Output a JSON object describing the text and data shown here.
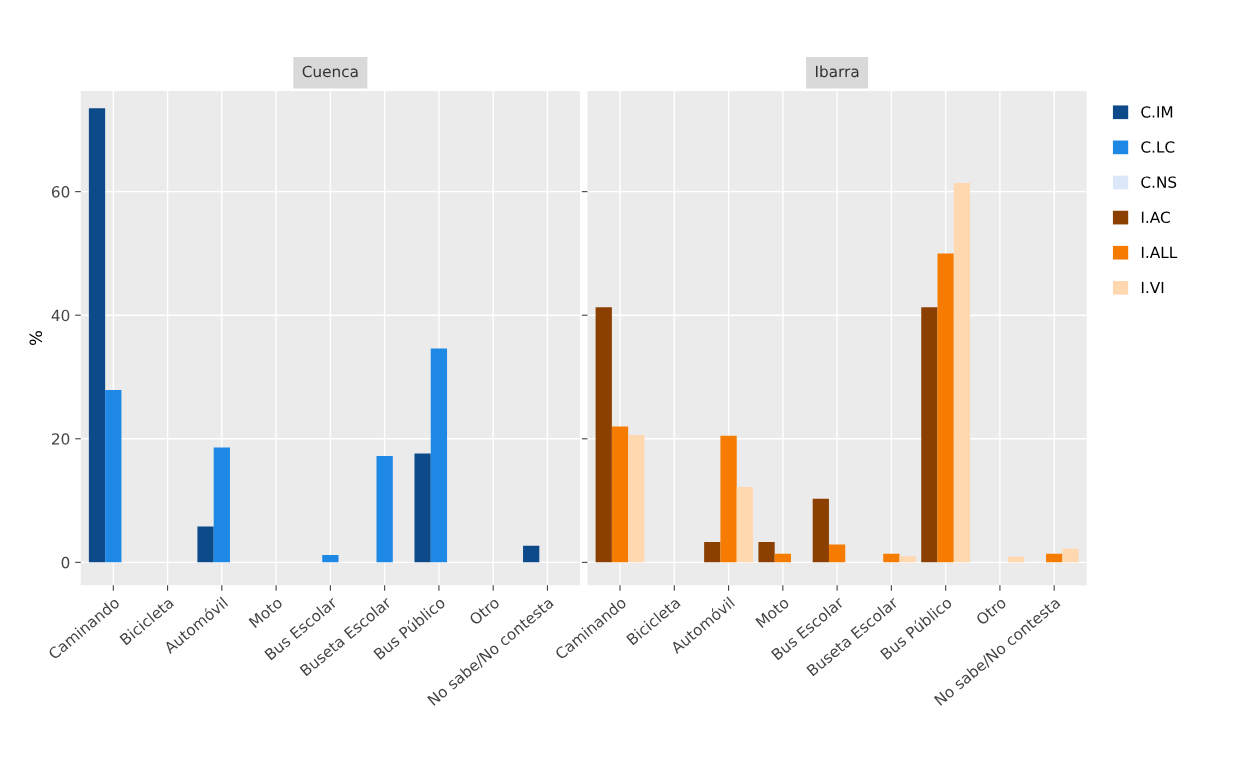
{
  "chart_data": [
    {
      "type": "bar",
      "title": "Cuenca",
      "ylabel": "%",
      "categories": [
        "Caminando",
        "Bicicleta",
        "Automóvil",
        "Moto",
        "Bus Escolar",
        "Buseta Escolar",
        "Bus Público",
        "Otro",
        "No sabe/No contesta"
      ],
      "ylim": [
        -3.7,
        76.3
      ],
      "yticks": [
        0,
        20,
        40,
        60
      ],
      "grid": true,
      "legend": "right",
      "series": [
        {
          "name": "C.IM",
          "color": "#0d4a8a",
          "values": [
            73.5,
            0,
            5.8,
            0,
            0,
            0,
            17.6,
            0,
            2.7
          ]
        },
        {
          "name": "C.LC",
          "color": "#1e88e5",
          "values": [
            27.9,
            0,
            18.6,
            0,
            1.2,
            17.2,
            34.6,
            0,
            0
          ]
        },
        {
          "name": "C.NS",
          "color": "#dce8fa",
          "values": [
            0,
            0,
            0,
            0,
            0,
            0,
            0,
            0,
            0
          ]
        }
      ]
    },
    {
      "type": "bar",
      "title": "Ibarra",
      "categories": [
        "Caminando",
        "Bicicleta",
        "Automóvil",
        "Moto",
        "Bus Escolar",
        "Buseta Escolar",
        "Bus Público",
        "Otro",
        "No sabe/No contesta"
      ],
      "ylim": [
        -3.7,
        76.3
      ],
      "yticks": [
        0,
        20,
        40,
        60
      ],
      "grid": true,
      "tick_labels": "x",
      "legend": "right",
      "series": [
        {
          "name": "I.AC",
          "color": "#8b4000",
          "values": [
            41.3,
            0,
            3.3,
            3.3,
            10.3,
            0,
            41.3,
            0,
            0
          ]
        },
        {
          "name": "I.ALL",
          "color": "#f57c00",
          "values": [
            22.0,
            0,
            20.5,
            1.4,
            2.9,
            1.4,
            50.0,
            0,
            1.4
          ]
        },
        {
          "name": "I.VI",
          "color": "#ffd8b0",
          "values": [
            20.6,
            0,
            12.2,
            0,
            0,
            1.0,
            61.4,
            0.9,
            2.2
          ]
        }
      ]
    }
  ]
}
